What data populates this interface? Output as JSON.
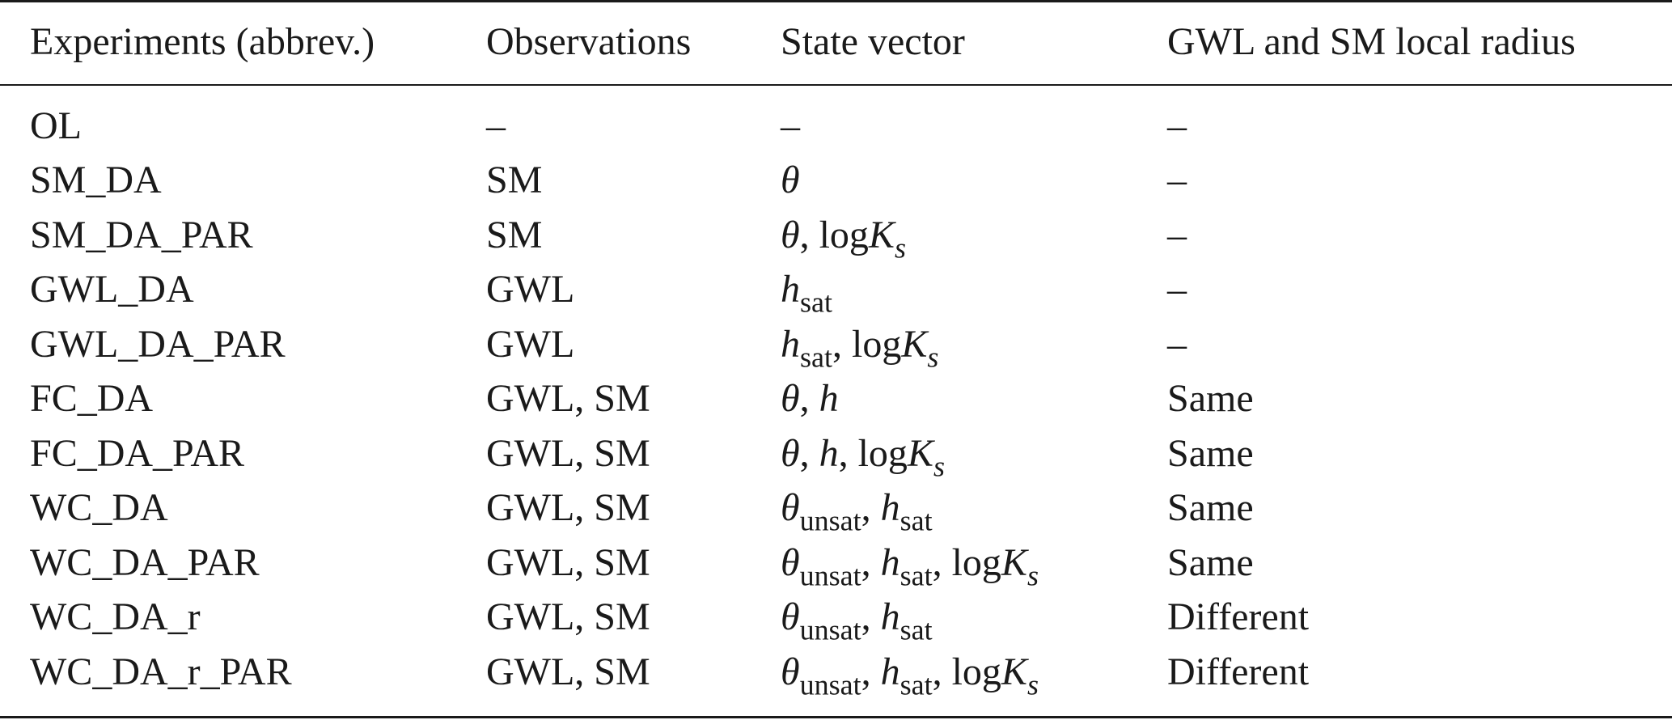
{
  "table": {
    "headers": [
      "Experiments (abbrev.)",
      "Observations",
      "State vector",
      "GWL and SM local radius"
    ],
    "rows": [
      {
        "experiment": "OL",
        "observations": "–",
        "state_vector": "–",
        "radius": "–"
      },
      {
        "experiment": "SM_DA",
        "observations": "SM",
        "state_vector": "θ",
        "radius": "–"
      },
      {
        "experiment": "SM_DA_PAR",
        "observations": "SM",
        "state_vector": "θ, logK_s",
        "radius": "–"
      },
      {
        "experiment": "GWL_DA",
        "observations": "GWL",
        "state_vector": "h_sat",
        "radius": "–"
      },
      {
        "experiment": "GWL_DA_PAR",
        "observations": "GWL",
        "state_vector": "h_sat, logK_s",
        "radius": "–"
      },
      {
        "experiment": "FC_DA",
        "observations": "GWL, SM",
        "state_vector": "θ, h",
        "radius": "Same"
      },
      {
        "experiment": "FC_DA_PAR",
        "observations": "GWL, SM",
        "state_vector": "θ, h, logK_s",
        "radius": "Same"
      },
      {
        "experiment": "WC_DA",
        "observations": "GWL, SM",
        "state_vector": "θ_unsat, h_sat",
        "radius": "Same"
      },
      {
        "experiment": "WC_DA_PAR",
        "observations": "GWL, SM",
        "state_vector": "θ_unsat, h_sat, logK_s",
        "radius": "Same"
      },
      {
        "experiment": "WC_DA_r",
        "observations": "GWL, SM",
        "state_vector": "θ_unsat, h_sat",
        "radius": "Different"
      },
      {
        "experiment": "WC_DA_r_PAR",
        "observations": "GWL, SM",
        "state_vector": "θ_unsat, h_sat, logK_s",
        "radius": "Different"
      }
    ]
  }
}
